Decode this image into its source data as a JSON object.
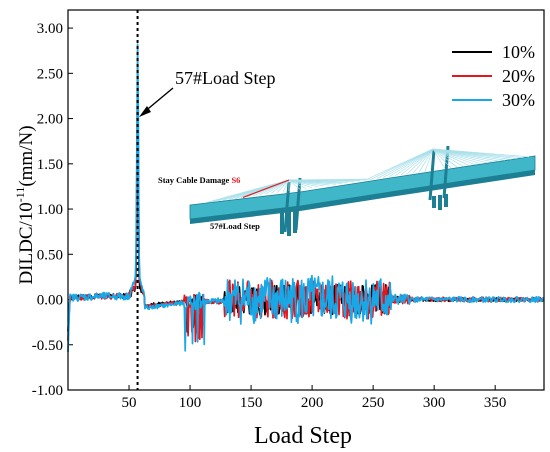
{
  "chart_data": {
    "type": "line",
    "xlabel": "Load Step",
    "ylabel_main": "DILDC/10",
    "ylabel_exp": "-11",
    "ylabel_unit": "(mm/N)",
    "xlim": [
      0,
      390
    ],
    "ylim": [
      -1.0,
      3.2
    ],
    "x_ticks": [
      50,
      100,
      150,
      200,
      250,
      300,
      350
    ],
    "y_ticks": [
      -1.0,
      -0.5,
      0.0,
      0.5,
      1.0,
      1.5,
      2.0,
      2.5,
      3.0
    ],
    "y_tick_labels": [
      "-1.00",
      "-0.50",
      "0.00",
      "0.50",
      "1.00",
      "1.50",
      "2.00",
      "2.50",
      "3.00"
    ],
    "grid": false,
    "legend_position": "top-right",
    "marker_line_x": 57,
    "annotations": {
      "load_step": "57#Load Step",
      "inset_damage": "Stay Cable Damage",
      "inset_cable_id": "S6",
      "inset_load_step": "57#Load Step"
    },
    "series": [
      {
        "name": "10%",
        "color": "#000000",
        "amp": 0.75
      },
      {
        "name": "20%",
        "color": "#e8141b",
        "amp": 0.95
      },
      {
        "name": "30%",
        "color": "#18a8e8",
        "amp": 1.2
      }
    ]
  }
}
